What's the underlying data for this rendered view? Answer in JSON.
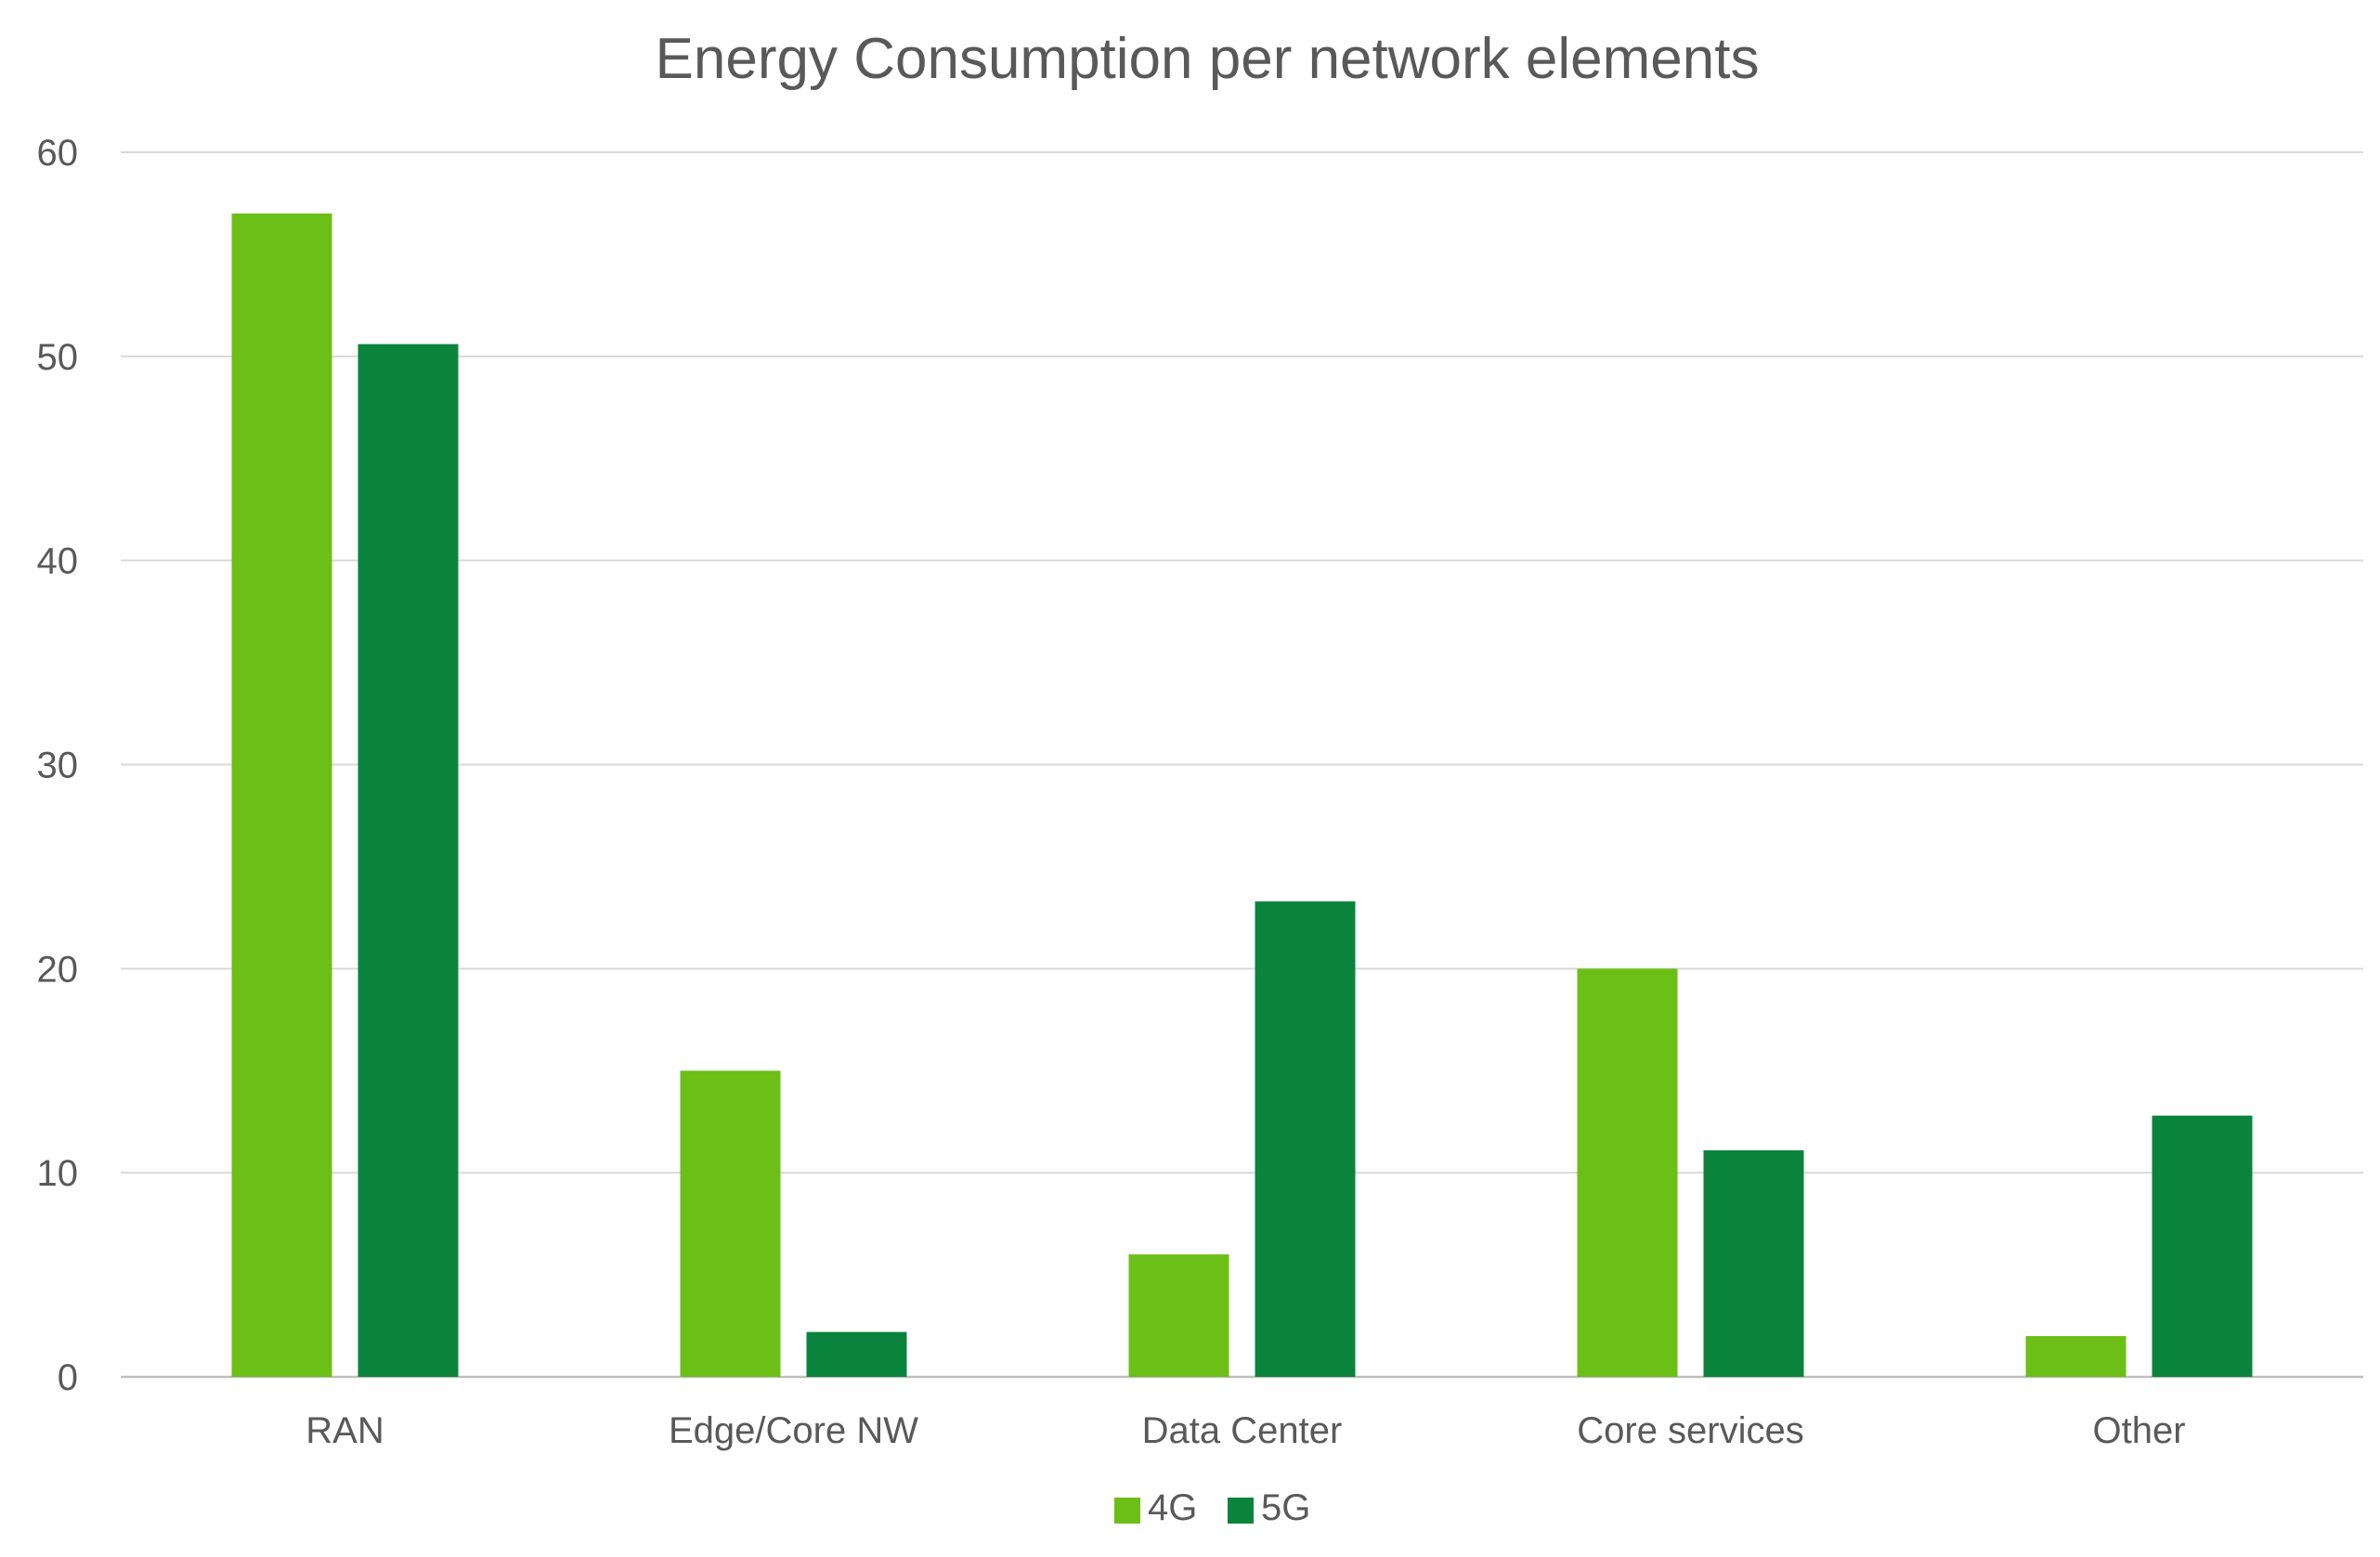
{
  "chart_data": {
    "type": "bar",
    "title": "Energy Consumption per network elements",
    "xlabel": "",
    "ylabel": "",
    "categories": [
      "RAN",
      "Edge/Core NW",
      "Data Center",
      "Core services",
      "Other"
    ],
    "series": [
      {
        "name": "4G",
        "color": "#6cbf16",
        "values": [
          57,
          15,
          6,
          20,
          2
        ]
      },
      {
        "name": "5G",
        "color": "#0a843d",
        "values": [
          50.6,
          2.2,
          23.3,
          11.1,
          12.8
        ]
      }
    ],
    "ylim": [
      0,
      60
    ],
    "yticks": [
      0,
      10,
      20,
      30,
      40,
      50,
      60
    ],
    "grid": true,
    "legend_position": "bottom"
  }
}
